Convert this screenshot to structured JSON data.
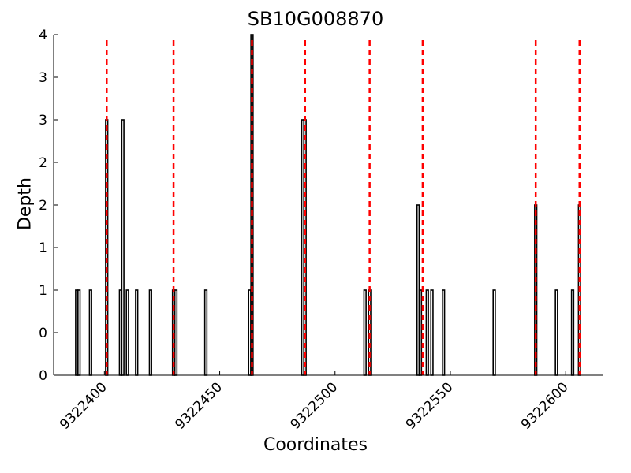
{
  "chart_data": {
    "type": "bar",
    "title": "SB10G008870",
    "xlabel": "Coordinates",
    "ylabel": "Depth",
    "xlim": [
      9322378,
      9322616
    ],
    "ylim": [
      0,
      4
    ],
    "y_tick_values": [
      0,
      0.5,
      1,
      1.5,
      2,
      2.5,
      3,
      3.5,
      4
    ],
    "y_tick_labels": [
      "0",
      "0",
      "1",
      "1",
      "2",
      "2",
      "3",
      "3",
      "4"
    ],
    "x_ticks": [
      9322400,
      9322450,
      9322500,
      9322550,
      9322600
    ],
    "x_tick_labels": [
      "9322400",
      "9322450",
      "9322500",
      "9322550",
      "9322600"
    ],
    "grid": false,
    "bar_color": "#ffffff",
    "bar_edge_color": "#000000",
    "marker_color": "#ff0000",
    "bars": [
      {
        "x": 9322388,
        "y": 1
      },
      {
        "x": 9322389,
        "y": 1
      },
      {
        "x": 9322394,
        "y": 1
      },
      {
        "x": 9322401,
        "y": 3
      },
      {
        "x": 9322407,
        "y": 1
      },
      {
        "x": 9322408,
        "y": 3
      },
      {
        "x": 9322410,
        "y": 1
      },
      {
        "x": 9322414,
        "y": 1
      },
      {
        "x": 9322420,
        "y": 1
      },
      {
        "x": 9322430,
        "y": 1
      },
      {
        "x": 9322431,
        "y": 1
      },
      {
        "x": 9322444,
        "y": 1
      },
      {
        "x": 9322463,
        "y": 1
      },
      {
        "x": 9322464,
        "y": 4
      },
      {
        "x": 9322486,
        "y": 3
      },
      {
        "x": 9322487,
        "y": 3
      },
      {
        "x": 9322513,
        "y": 1
      },
      {
        "x": 9322515,
        "y": 1
      },
      {
        "x": 9322536,
        "y": 2
      },
      {
        "x": 9322537,
        "y": 1
      },
      {
        "x": 9322540,
        "y": 1
      },
      {
        "x": 9322542,
        "y": 1
      },
      {
        "x": 9322547,
        "y": 1
      },
      {
        "x": 9322569,
        "y": 1
      },
      {
        "x": 9322587,
        "y": 2
      },
      {
        "x": 9322596,
        "y": 1
      },
      {
        "x": 9322603,
        "y": 1
      },
      {
        "x": 9322606,
        "y": 2
      }
    ],
    "vertical_markers": [
      9322401,
      9322430,
      9322464,
      9322487,
      9322515,
      9322538,
      9322587,
      9322606
    ]
  }
}
